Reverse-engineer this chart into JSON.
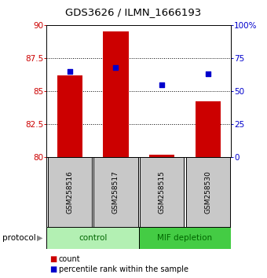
{
  "title": "GDS3626 / ILMN_1666193",
  "samples": [
    "GSM258516",
    "GSM258517",
    "GSM258515",
    "GSM258530"
  ],
  "groups": [
    "control",
    "control",
    "MIF depletion",
    "MIF depletion"
  ],
  "red_values": [
    86.2,
    89.5,
    80.2,
    84.2
  ],
  "blue_values": [
    65,
    68,
    55,
    63
  ],
  "ylim_left": [
    80,
    90
  ],
  "ylim_right": [
    0,
    100
  ],
  "yticks_left": [
    80,
    82.5,
    85,
    87.5,
    90
  ],
  "ytick_labels_left": [
    "80",
    "82.5",
    "85",
    "87.5",
    "90"
  ],
  "yticks_right": [
    0,
    25,
    50,
    75,
    100
  ],
  "ytick_labels_right": [
    "0",
    "25",
    "50",
    "75",
    "100%"
  ],
  "red_color": "#cc0000",
  "blue_color": "#0000cc",
  "bar_width": 0.55,
  "ctrl_color": "#b3f0b3",
  "mif_color": "#44cc44",
  "group_label_color": "#006600",
  "sample_box_color": "#c8c8c8",
  "protocol_label": "protocol",
  "legend_red": "count",
  "legend_blue": "percentile rank within the sample",
  "left_axis_color": "#cc0000",
  "right_axis_color": "#0000cc",
  "title_fontsize": 9.5,
  "tick_fontsize": 7.5,
  "sample_fontsize": 6.5,
  "protocol_fontsize": 7.5,
  "legend_fontsize": 7.0
}
